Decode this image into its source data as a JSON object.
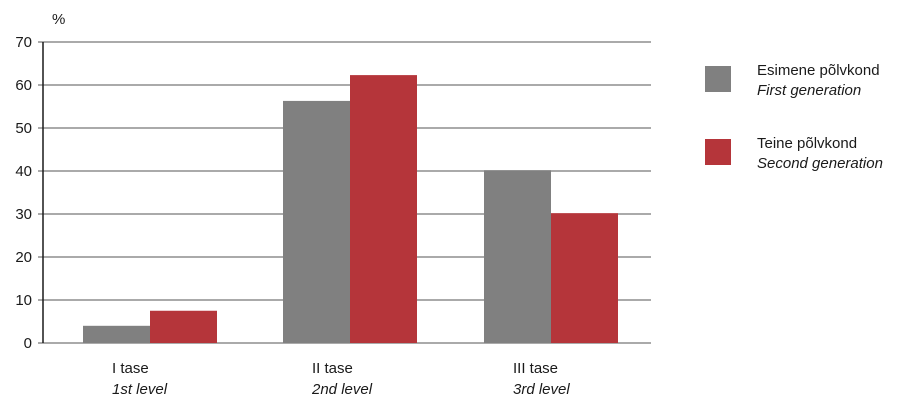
{
  "chart_data": {
    "type": "bar",
    "unit_label": "%",
    "ylim": [
      0,
      70
    ],
    "yticks": [
      0,
      10,
      20,
      30,
      40,
      50,
      60,
      70
    ],
    "grid": true,
    "legend_position": "right",
    "categories": [
      {
        "line1": "I tase",
        "line2": "1st level"
      },
      {
        "line1": "II tase",
        "line2": "2nd level"
      },
      {
        "line1": "III tase",
        "line2": "3rd level"
      }
    ],
    "series": [
      {
        "name": "Esimene põlvkond",
        "name_en": "First generation",
        "color": "#808080",
        "values": [
          4,
          56.3,
          40.2
        ]
      },
      {
        "name": "Teine põlvkond",
        "name_en": "Second generation",
        "color": "#b5353a",
        "values": [
          7.5,
          62.3,
          30.2
        ]
      }
    ]
  }
}
